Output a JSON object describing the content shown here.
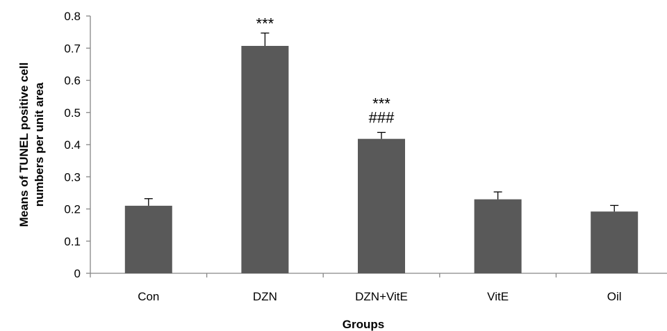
{
  "chart_data": {
    "type": "bar",
    "categories": [
      "Con",
      "DZN",
      "DZN+VitE",
      "VitE",
      "Oil"
    ],
    "values": [
      0.21,
      0.707,
      0.418,
      0.23,
      0.192
    ],
    "errors": [
      0.022,
      0.04,
      0.02,
      0.023,
      0.019
    ],
    "annotations": [
      [],
      [
        "***"
      ],
      [
        "***",
        "###"
      ],
      [],
      []
    ],
    "xlabel": "Groups",
    "ylabel": [
      "Means of TUNEL positive cell",
      "numbers per unit area"
    ],
    "ylim": [
      0,
      0.8
    ],
    "yticks": [
      "0",
      "0.1",
      "0.2",
      "0.3",
      "0.4",
      "0.5",
      "0.6",
      "0.7",
      "0.8"
    ],
    "grid": false,
    "legend": "none",
    "colors": {
      "bar": "#595959",
      "axis": "#868686",
      "error": "#000000"
    }
  }
}
